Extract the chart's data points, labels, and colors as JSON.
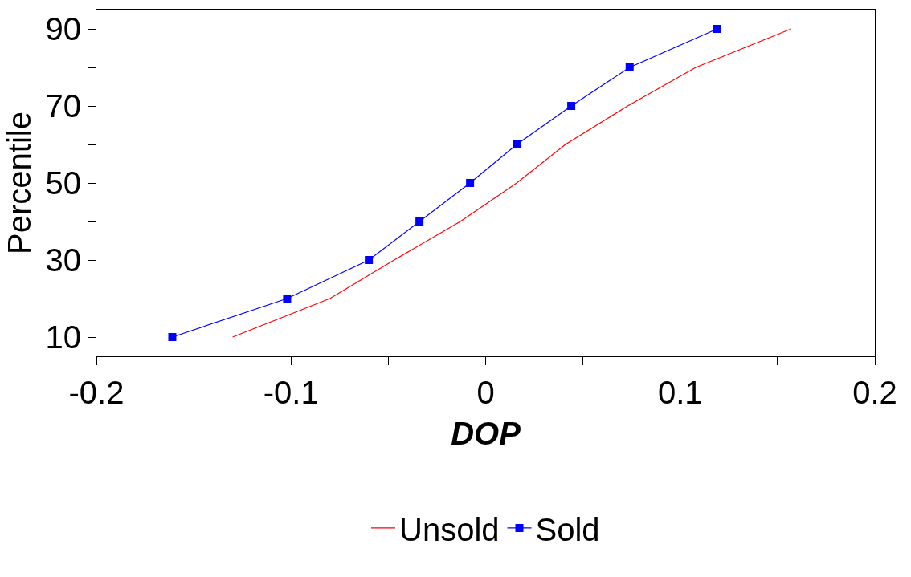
{
  "chart_data": {
    "type": "line",
    "xlabel": "DOP",
    "ylabel": "Percentile",
    "xlim": [
      -0.2,
      0.2
    ],
    "xticks": [
      -0.2,
      {
        "value": -0.15,
        "label": null
      },
      -0.1,
      {
        "value": -0.05,
        "label": null
      },
      0,
      {
        "value": 0.05,
        "label": null
      },
      0.1,
      {
        "value": 0.15,
        "label": null
      },
      0.2
    ],
    "ylim": [
      5,
      95
    ],
    "yticks": [
      10,
      {
        "value": 20,
        "label": null
      },
      30,
      {
        "value": 40,
        "label": null
      },
      50,
      {
        "value": 60,
        "label": null
      },
      70,
      {
        "value": 80,
        "label": null
      },
      90
    ],
    "legend": "bottom",
    "series": [
      {
        "name": "Unsold",
        "color": "#ff0000",
        "marker": "none",
        "x": [
          -0.13,
          -0.08,
          -0.047,
          -0.013,
          0.016,
          0.041,
          0.073,
          0.108,
          0.157
        ],
        "values": [
          10,
          20,
          30,
          40,
          50,
          60,
          70,
          80,
          90
        ]
      },
      {
        "name": "Sold",
        "color": "#0000ff",
        "marker": "square",
        "x": [
          -0.161,
          -0.102,
          -0.06,
          -0.034,
          -0.008,
          0.016,
          0.044,
          0.074,
          0.119
        ],
        "values": [
          10,
          20,
          30,
          40,
          50,
          60,
          70,
          80,
          90
        ]
      }
    ]
  }
}
